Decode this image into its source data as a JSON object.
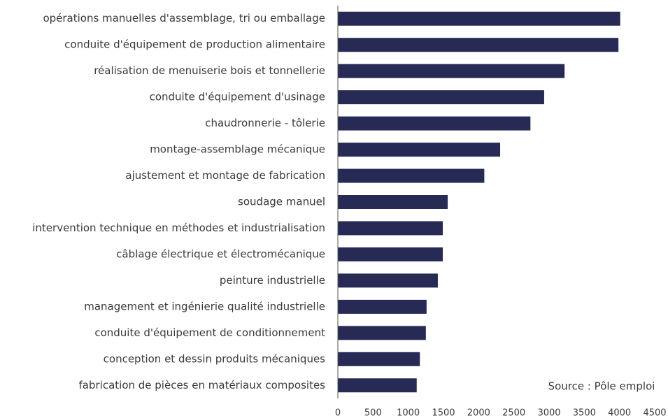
{
  "chart_data": {
    "type": "barh",
    "categories": [
      "opérations manuelles d'assemblage, tri ou emballage",
      "conduite d'équipement de production alimentaire",
      "réalisation de menuiserie bois et tonnellerie",
      "conduite d'équipement d'usinage",
      "chaudronnerie - tôlerie",
      "montage-assemblage mécanique",
      "ajustement et montage de fabrication",
      "soudage manuel",
      "intervention technique en méthodes et industrialisation",
      "câblage électrique et électromécanique",
      "peinture industrielle",
      "management et ingénierie qualité industrielle",
      "conduite d'équipement de conditionnement",
      "conception et dessin produits mécaniques",
      "fabrication de pièces en matériaux composites"
    ],
    "values": [
      4010,
      3985,
      3220,
      2930,
      2735,
      2305,
      2080,
      1560,
      1490,
      1490,
      1420,
      1260,
      1250,
      1165,
      1120
    ],
    "color": "#262a55",
    "xlim": [
      0,
      4500
    ],
    "xticks": [
      0,
      500,
      1000,
      1500,
      2000,
      2500,
      3000,
      3500,
      4000,
      4500
    ],
    "grid": false,
    "annotation": "Source : Pôle emploi"
  }
}
